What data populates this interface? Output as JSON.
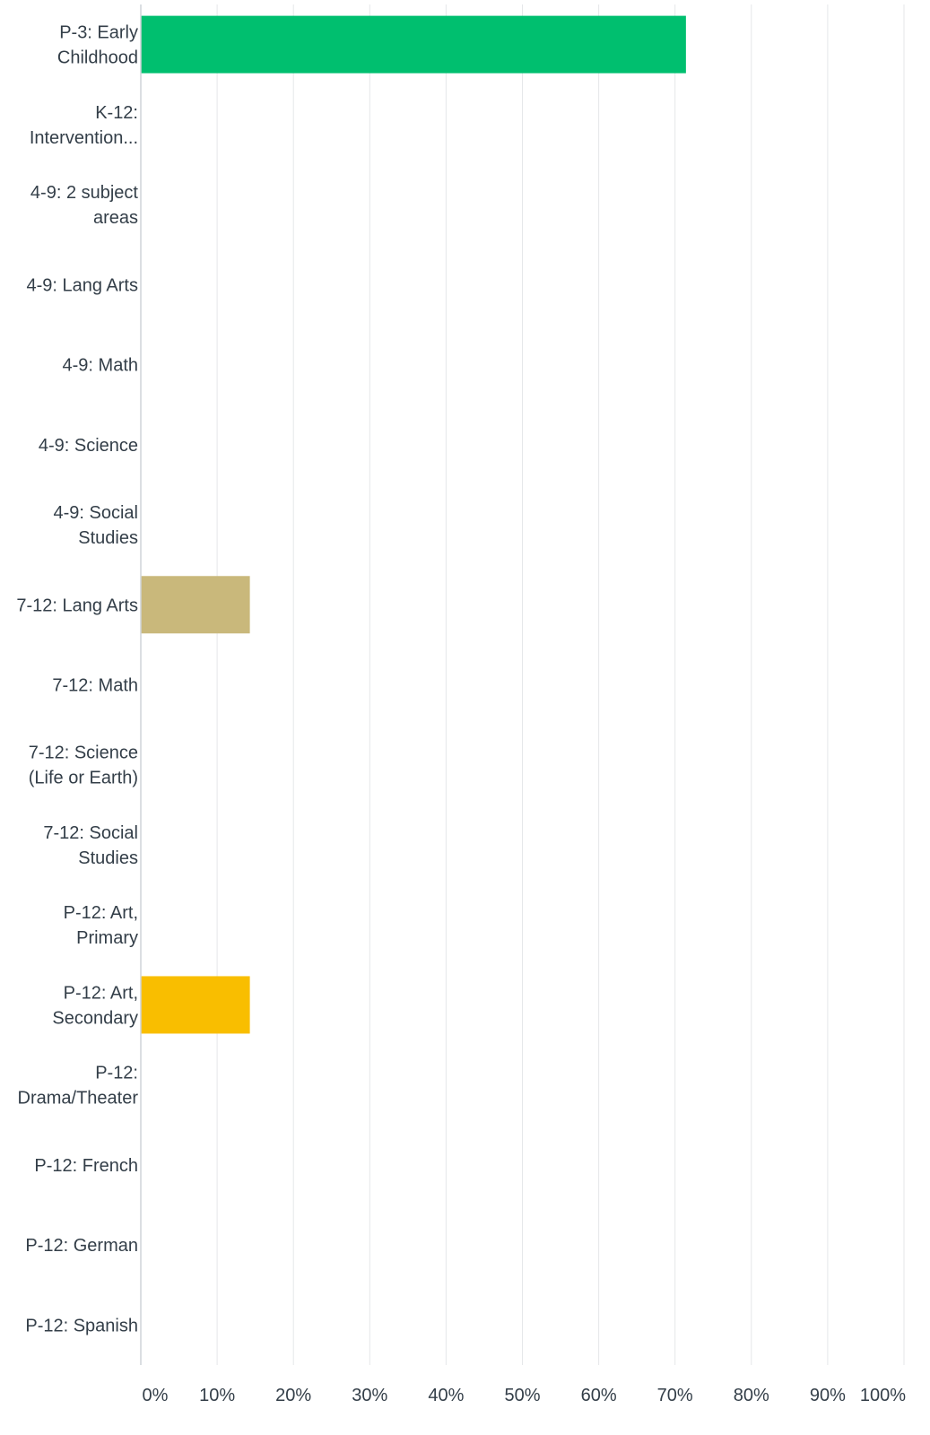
{
  "chart_data": {
    "type": "bar",
    "orientation": "horizontal",
    "categories": [
      [
        "P-3: Early",
        "Childhood"
      ],
      [
        "K-12:",
        "Intervention..."
      ],
      [
        "4-9: 2 subject",
        "areas"
      ],
      [
        "4-9: Lang Arts"
      ],
      [
        "4-9: Math"
      ],
      [
        "4-9: Science"
      ],
      [
        "4-9: Social",
        "Studies"
      ],
      [
        "7-12: Lang Arts"
      ],
      [
        "7-12: Math"
      ],
      [
        "7-12: Science",
        "(Life or Earth)"
      ],
      [
        "7-12: Social",
        "Studies"
      ],
      [
        "P-12: Art,",
        "Primary"
      ],
      [
        "P-12: Art,",
        "Secondary"
      ],
      [
        "P-12:",
        "Drama/Theater"
      ],
      [
        "P-12: French"
      ],
      [
        "P-12: German"
      ],
      [
        "P-12: Spanish"
      ]
    ],
    "values": [
      71.43,
      0,
      0,
      0,
      0,
      0,
      0,
      14.29,
      0,
      0,
      0,
      0,
      14.29,
      0,
      0,
      0,
      0
    ],
    "bar_colors": [
      "#00bf6f",
      "#507cb6",
      "#6bc8cd",
      "#f05b24",
      "#ac4b82",
      "#9c9c9c",
      "#2a6ebb",
      "#c9b87b",
      "#5dc6c2",
      "#e86d2a",
      "#7ab648",
      "#e9558c",
      "#f9be00",
      "#9fc9ea",
      "#d9534f",
      "#8e44ad",
      "#bdbdbd"
    ],
    "xlim": [
      0,
      100
    ],
    "x_ticks": [
      "0%",
      "10%",
      "20%",
      "30%",
      "40%",
      "50%",
      "60%",
      "70%",
      "80%",
      "90%",
      "100%"
    ],
    "grid": true,
    "colors": {
      "gridline": "#e5e7e9",
      "axis": "#cfd4d8",
      "text": "#333e48"
    }
  }
}
